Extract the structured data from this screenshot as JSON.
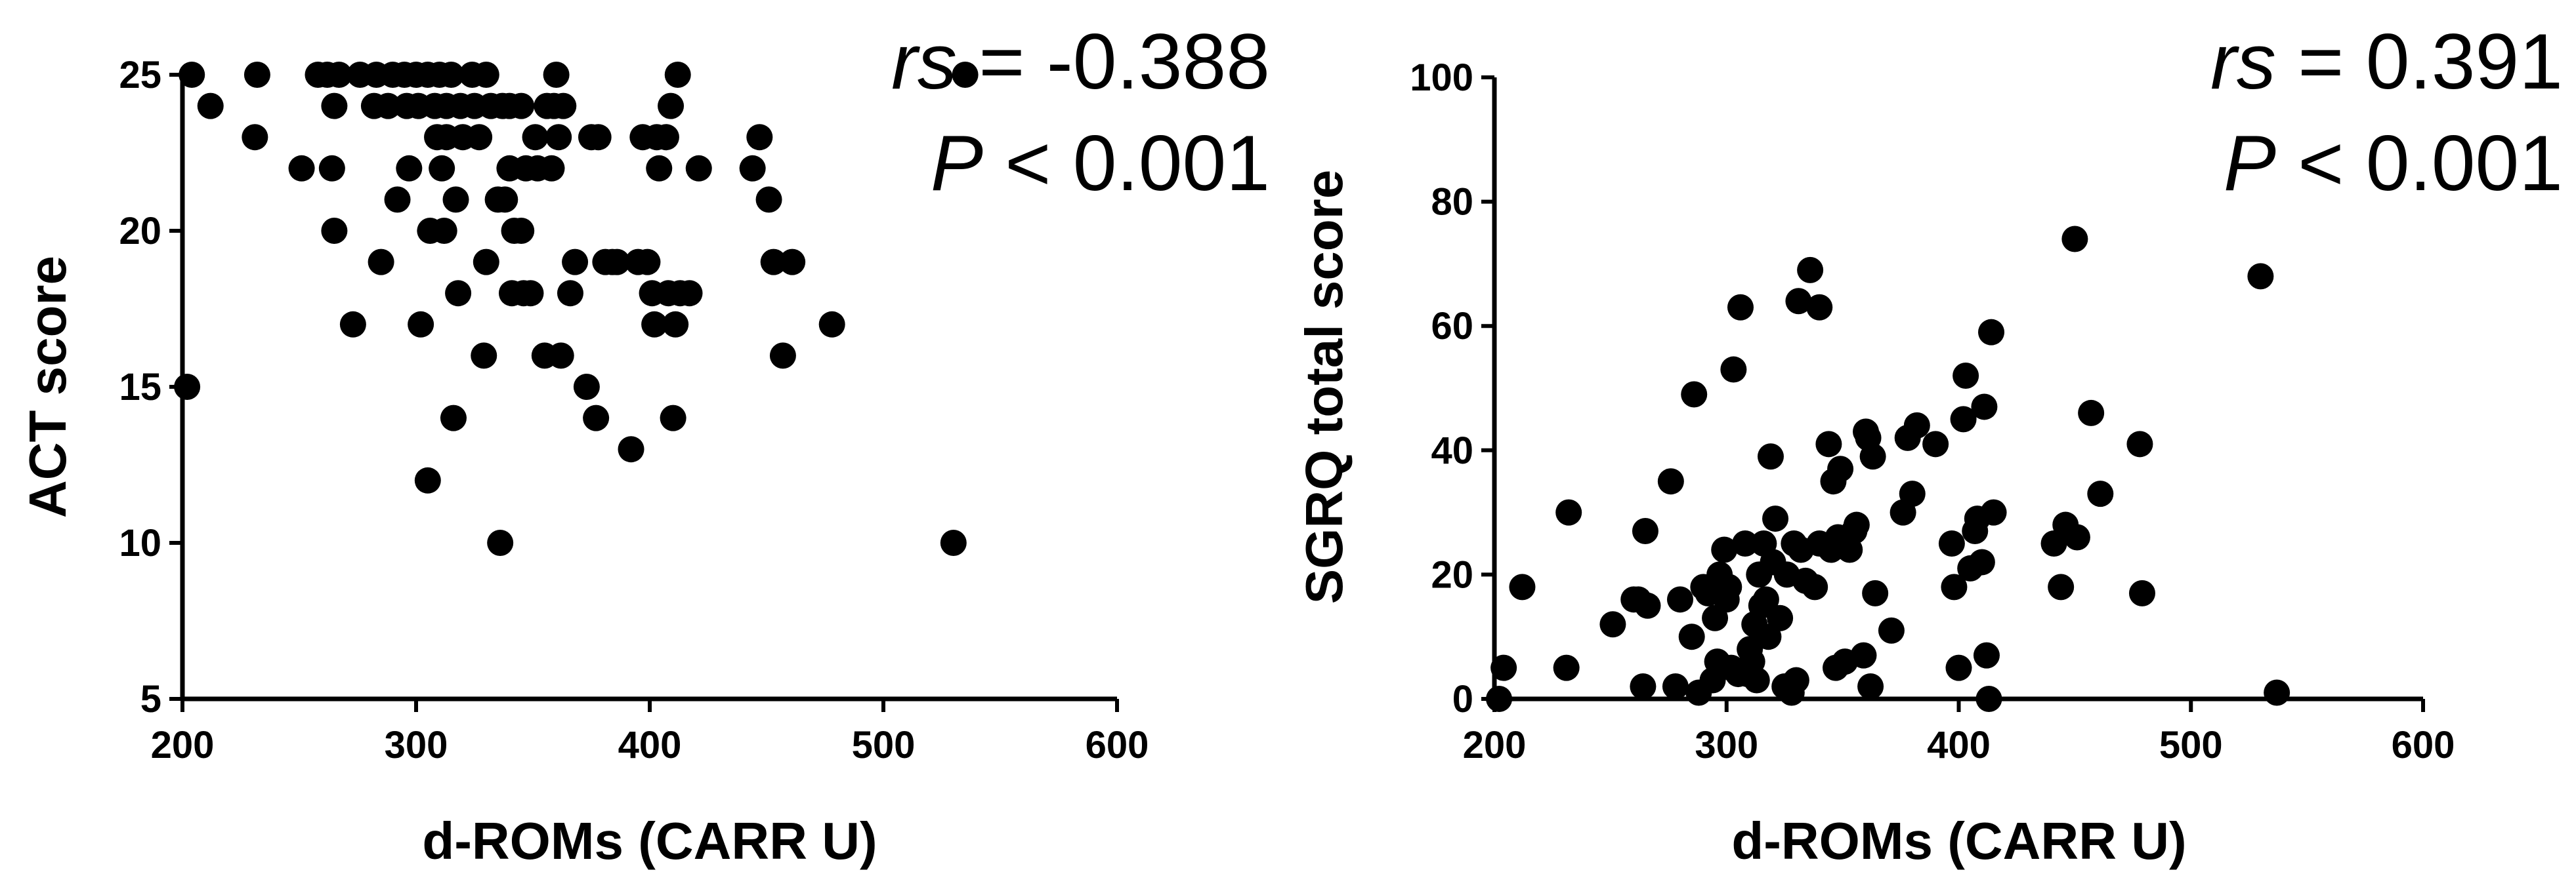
{
  "chart_data": [
    {
      "type": "scatter",
      "xlabel": "d-ROMs (CARR U)",
      "ylabel": "ACT score",
      "xlim": [
        200,
        600
      ],
      "ylim": [
        5,
        25
      ],
      "xticks": [
        "200",
        "300",
        "400",
        "500",
        "600"
      ],
      "yticks": [
        "5",
        "10",
        "15",
        "20",
        "25"
      ],
      "annotation": {
        "stat_label": "rs",
        "stat_value": " = -0.388",
        "p_label": "P",
        "p_value": " < 0.001"
      },
      "grid": false,
      "color": "#000000",
      "points": [
        [
          202,
          15
        ],
        [
          204,
          25
        ],
        [
          212,
          24
        ],
        [
          231,
          23
        ],
        [
          232,
          25
        ],
        [
          251,
          22
        ],
        [
          258,
          25
        ],
        [
          262,
          25
        ],
        [
          264,
          22
        ],
        [
          265,
          24
        ],
        [
          265,
          20
        ],
        [
          267,
          25
        ],
        [
          273,
          17
        ],
        [
          276,
          25
        ],
        [
          282,
          24
        ],
        [
          283,
          25
        ],
        [
          285,
          19
        ],
        [
          288,
          24
        ],
        [
          290,
          25
        ],
        [
          292,
          21
        ],
        [
          295,
          25
        ],
        [
          296,
          24
        ],
        [
          297,
          22
        ],
        [
          300,
          25
        ],
        [
          301,
          24
        ],
        [
          302,
          17
        ],
        [
          305,
          25
        ],
        [
          305,
          12
        ],
        [
          306,
          20
        ],
        [
          308,
          24
        ],
        [
          309,
          23
        ],
        [
          310,
          25
        ],
        [
          311,
          22
        ],
        [
          312,
          20
        ],
        [
          313,
          24
        ],
        [
          313,
          23
        ],
        [
          315,
          25
        ],
        [
          316,
          14
        ],
        [
          317,
          21
        ],
        [
          318,
          18
        ],
        [
          319,
          24
        ],
        [
          320,
          23
        ],
        [
          324,
          25
        ],
        [
          325,
          24
        ],
        [
          327,
          23
        ],
        [
          329,
          16
        ],
        [
          330,
          25
        ],
        [
          330,
          19
        ],
        [
          332,
          24
        ],
        [
          335,
          21
        ],
        [
          336,
          10
        ],
        [
          337,
          24
        ],
        [
          338,
          21
        ],
        [
          340,
          24
        ],
        [
          340,
          22
        ],
        [
          341,
          18
        ],
        [
          342,
          20
        ],
        [
          345,
          20
        ],
        [
          345,
          24
        ],
        [
          346,
          18
        ],
        [
          347,
          22
        ],
        [
          349,
          18
        ],
        [
          351,
          23
        ],
        [
          352,
          22
        ],
        [
          355,
          16
        ],
        [
          356,
          24
        ],
        [
          358,
          22
        ],
        [
          359,
          24
        ],
        [
          360,
          25
        ],
        [
          361,
          23
        ],
        [
          362,
          16
        ],
        [
          363,
          24
        ],
        [
          366,
          18
        ],
        [
          368,
          19
        ],
        [
          373,
          15
        ],
        [
          375,
          23
        ],
        [
          377,
          14
        ],
        [
          378,
          23
        ],
        [
          381,
          19
        ],
        [
          384,
          19
        ],
        [
          386,
          19
        ],
        [
          392,
          13
        ],
        [
          395,
          19
        ],
        [
          397,
          23
        ],
        [
          399,
          19
        ],
        [
          401,
          18
        ],
        [
          402,
          17
        ],
        [
          403,
          23
        ],
        [
          404,
          22
        ],
        [
          407,
          23
        ],
        [
          408,
          18
        ],
        [
          409,
          24
        ],
        [
          410,
          14
        ],
        [
          411,
          17
        ],
        [
          412,
          25
        ],
        [
          413,
          18
        ],
        [
          417,
          18
        ],
        [
          421,
          22
        ],
        [
          444,
          22
        ],
        [
          447,
          23
        ],
        [
          451,
          21
        ],
        [
          453,
          19
        ],
        [
          457,
          16
        ],
        [
          461,
          19
        ],
        [
          478,
          17
        ],
        [
          530,
          10
        ],
        [
          535,
          25
        ]
      ]
    },
    {
      "type": "scatter",
      "xlabel": "d-ROMs (CARR U)",
      "ylabel": "SGRQ total score",
      "xlim": [
        200,
        600
      ],
      "ylim": [
        0,
        100
      ],
      "xticks": [
        "200",
        "300",
        "400",
        "500",
        "600"
      ],
      "yticks": [
        "0",
        "20",
        "40",
        "60",
        "80",
        "100"
      ],
      "annotation": {
        "stat_label": "rs",
        "stat_value": " = 0.391",
        "p_label": "P",
        "p_value": " < 0.001"
      },
      "grid": false,
      "color": "#000000",
      "points": [
        [
          202,
          0
        ],
        [
          204,
          5
        ],
        [
          212,
          18
        ],
        [
          231,
          5
        ],
        [
          232,
          30
        ],
        [
          251,
          12
        ],
        [
          260,
          16
        ],
        [
          262,
          16
        ],
        [
          264,
          2
        ],
        [
          265,
          27
        ],
        [
          266,
          15
        ],
        [
          276,
          35
        ],
        [
          278,
          2
        ],
        [
          280,
          16
        ],
        [
          285,
          10
        ],
        [
          286,
          49
        ],
        [
          288,
          1
        ],
        [
          290,
          18
        ],
        [
          292,
          17
        ],
        [
          294,
          3
        ],
        [
          295,
          13
        ],
        [
          296,
          6
        ],
        [
          297,
          20
        ],
        [
          299,
          24
        ],
        [
          300,
          16
        ],
        [
          301,
          18
        ],
        [
          302,
          5
        ],
        [
          303,
          53
        ],
        [
          305,
          4
        ],
        [
          306,
          63
        ],
        [
          308,
          25
        ],
        [
          309,
          4
        ],
        [
          310,
          8
        ],
        [
          311,
          6
        ],
        [
          312,
          12
        ],
        [
          313,
          3
        ],
        [
          314,
          20
        ],
        [
          315,
          15
        ],
        [
          316,
          25
        ],
        [
          317,
          16
        ],
        [
          318,
          10
        ],
        [
          319,
          39
        ],
        [
          320,
          22
        ],
        [
          321,
          29
        ],
        [
          323,
          13
        ],
        [
          325,
          2
        ],
        [
          326,
          20
        ],
        [
          328,
          1
        ],
        [
          329,
          25
        ],
        [
          330,
          3
        ],
        [
          331,
          64
        ],
        [
          332,
          24
        ],
        [
          334,
          19
        ],
        [
          336,
          69
        ],
        [
          338,
          18
        ],
        [
          340,
          25
        ],
        [
          340,
          63
        ],
        [
          344,
          41
        ],
        [
          345,
          24
        ],
        [
          346,
          35
        ],
        [
          347,
          5
        ],
        [
          348,
          26
        ],
        [
          349,
          37
        ],
        [
          351,
          6
        ],
        [
          353,
          24
        ],
        [
          355,
          27
        ],
        [
          356,
          28
        ],
        [
          359,
          7
        ],
        [
          360,
          43
        ],
        [
          361,
          42
        ],
        [
          362,
          2
        ],
        [
          363,
          39
        ],
        [
          364,
          17
        ],
        [
          371,
          11
        ],
        [
          376,
          30
        ],
        [
          378,
          42
        ],
        [
          380,
          33
        ],
        [
          382,
          44
        ],
        [
          390,
          41
        ],
        [
          397,
          25
        ],
        [
          398,
          18
        ],
        [
          400,
          5
        ],
        [
          402,
          45
        ],
        [
          403,
          52
        ],
        [
          405,
          21
        ],
        [
          407,
          27
        ],
        [
          408,
          29
        ],
        [
          410,
          22
        ],
        [
          411,
          47
        ],
        [
          412,
          7
        ],
        [
          413,
          0
        ],
        [
          414,
          59
        ],
        [
          415,
          30
        ],
        [
          441,
          25
        ],
        [
          444,
          18
        ],
        [
          446,
          28
        ],
        [
          450,
          74
        ],
        [
          451,
          26
        ],
        [
          457,
          46
        ],
        [
          461,
          33
        ],
        [
          478,
          41
        ],
        [
          479,
          17
        ],
        [
          530,
          68
        ],
        [
          537,
          1
        ]
      ]
    }
  ]
}
